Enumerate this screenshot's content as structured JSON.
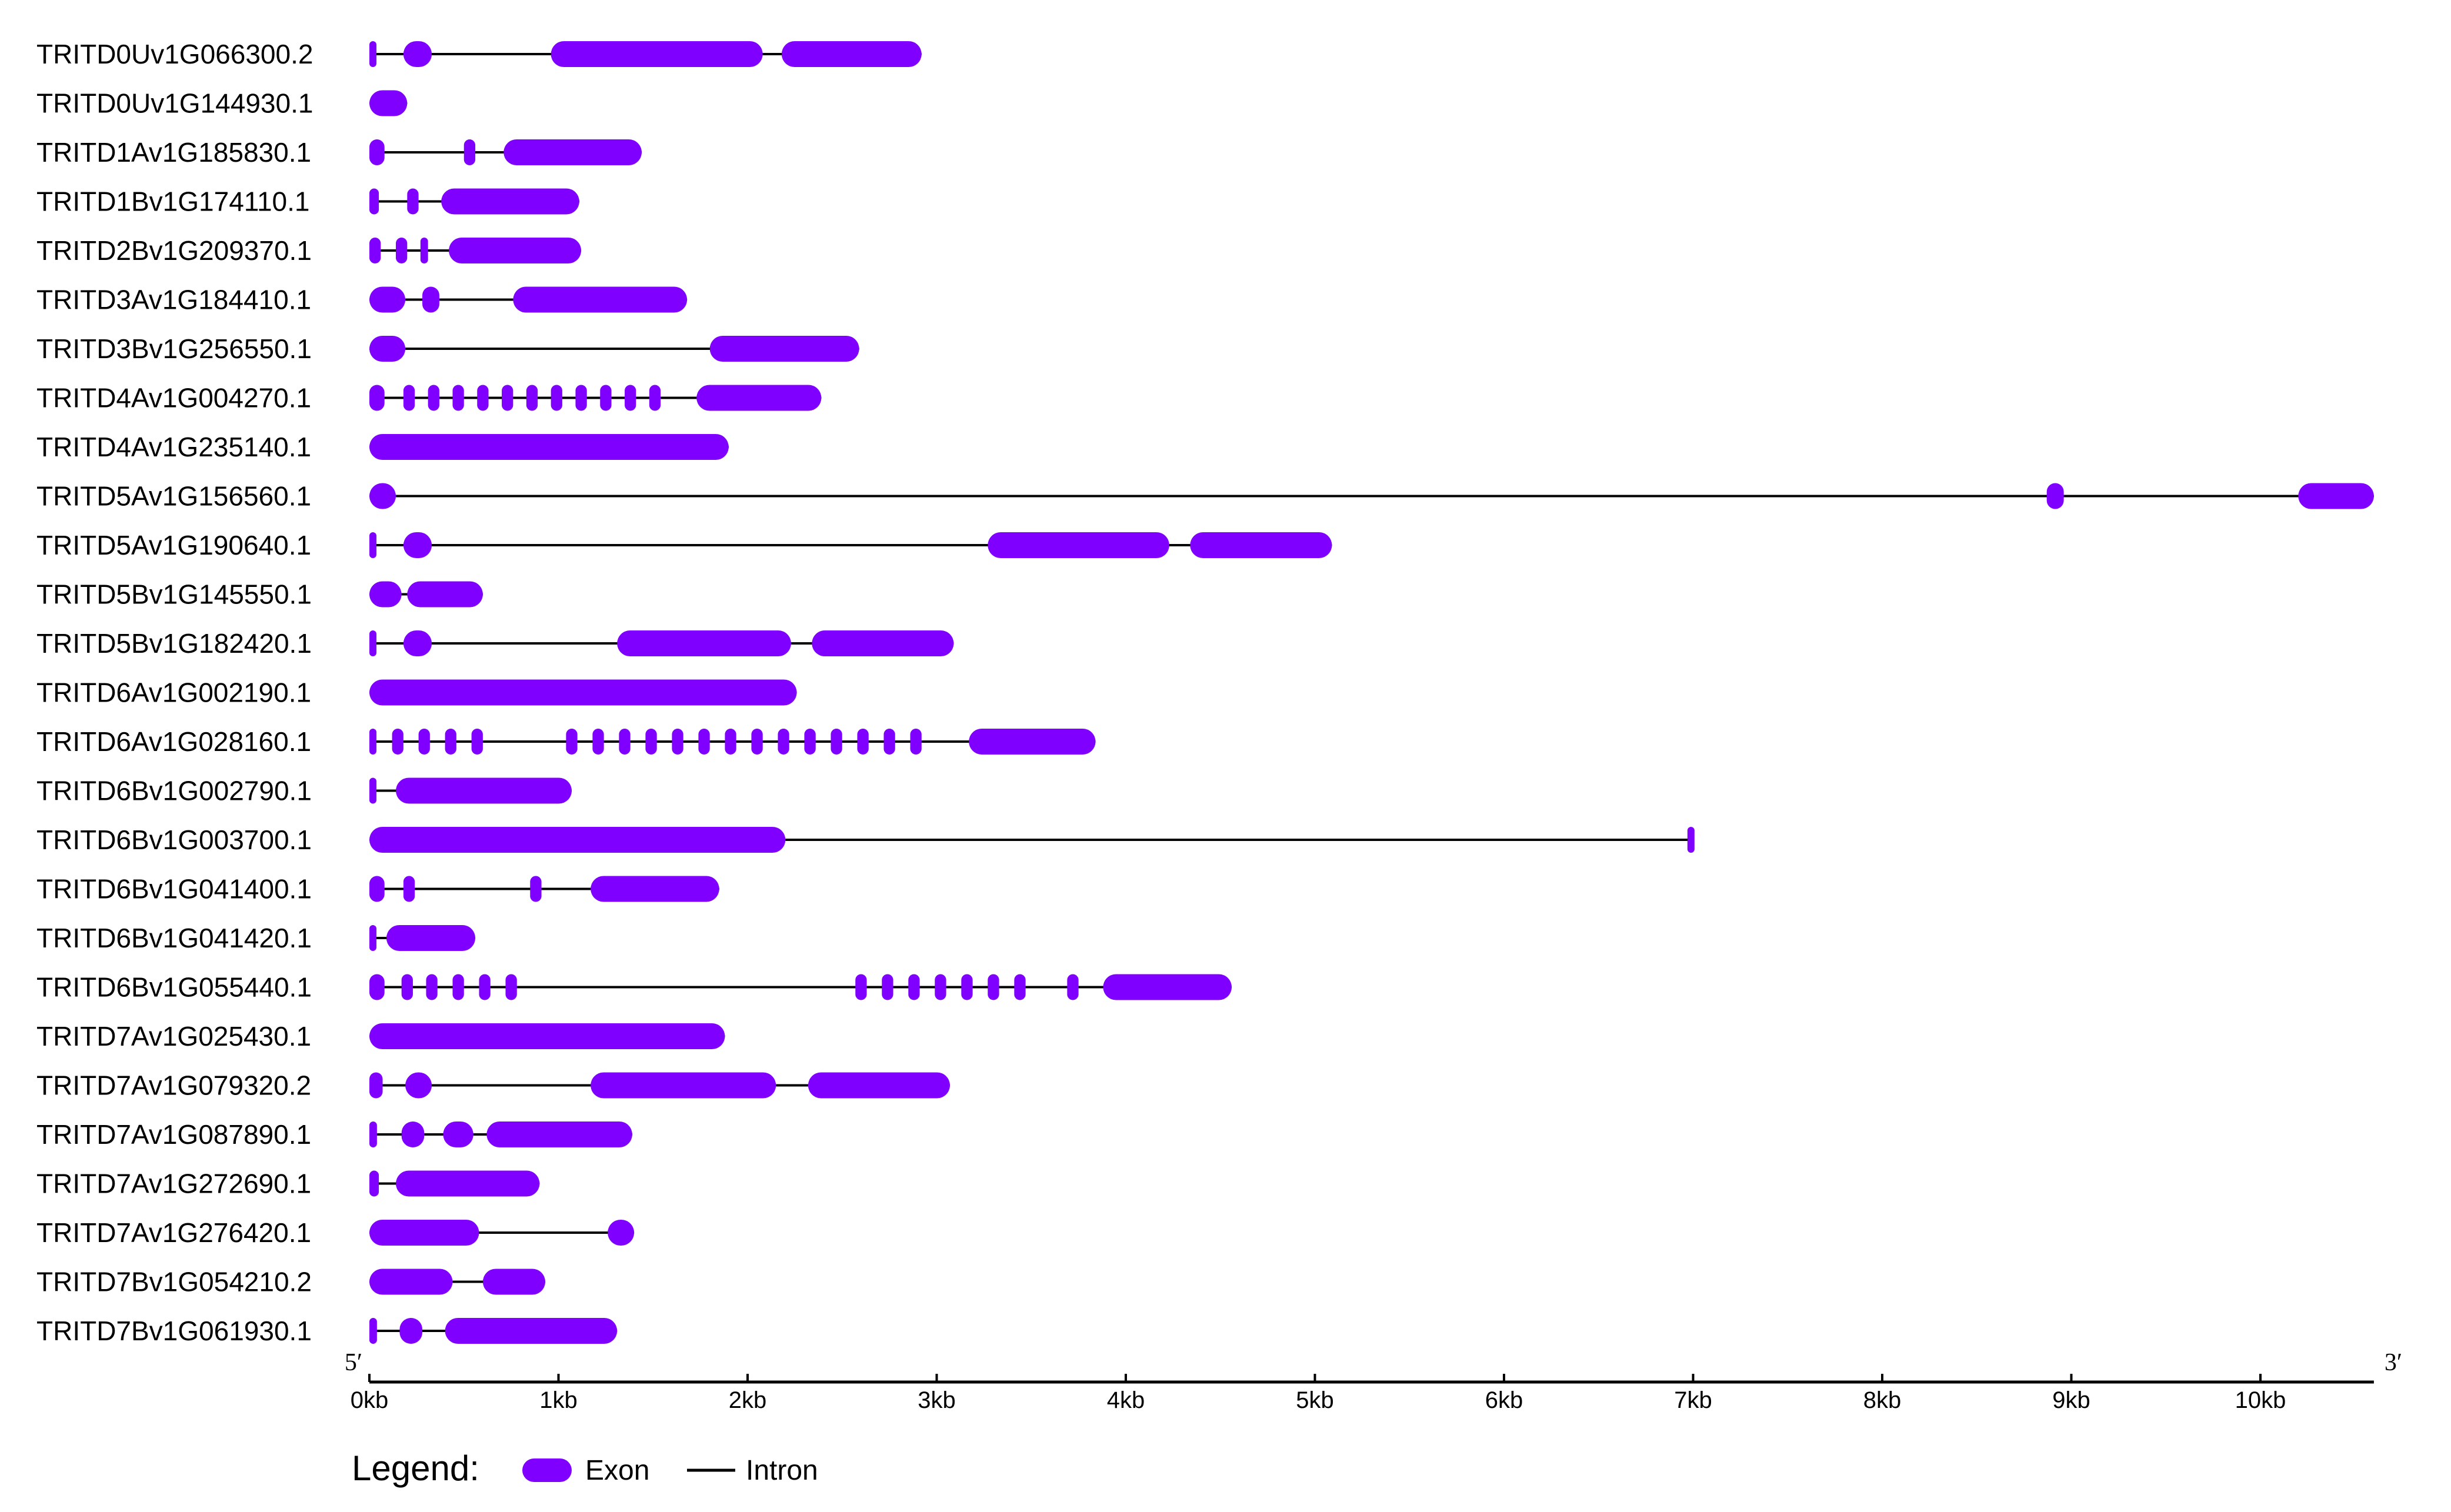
{
  "colors": {
    "exon": "#8000ff",
    "intron": "#000000",
    "axis": "#000000"
  },
  "axis": {
    "five_prime": "5′",
    "three_prime": "3′",
    "ticks": [
      "0kb",
      "1kb",
      "2kb",
      "3kb",
      "4kb",
      "5kb",
      "6kb",
      "7kb",
      "8kb",
      "9kb",
      "10kb"
    ]
  },
  "legend": {
    "title": "Legend:",
    "exon_label": "Exon",
    "intron_label": "Intron"
  },
  "chart_data": {
    "type": "gene-structure",
    "x_unit": "kb",
    "xlim": [
      0,
      10.6
    ],
    "genes": [
      {
        "name": "TRITD0Uv1G066300.2",
        "length": 2.92,
        "exons": [
          [
            0.0,
            0.03
          ],
          [
            0.18,
            0.33
          ],
          [
            0.96,
            2.08
          ],
          [
            2.18,
            2.92
          ]
        ]
      },
      {
        "name": "TRITD0Uv1G144930.1",
        "length": 0.2,
        "exons": [
          [
            0.0,
            0.2
          ]
        ]
      },
      {
        "name": "TRITD1Av1G185830.1",
        "length": 1.44,
        "exons": [
          [
            0.0,
            0.08
          ],
          [
            0.5,
            0.56
          ],
          [
            0.71,
            1.44
          ]
        ]
      },
      {
        "name": "TRITD1Bv1G174110.1",
        "length": 1.11,
        "exons": [
          [
            0.0,
            0.05
          ],
          [
            0.2,
            0.26
          ],
          [
            0.38,
            1.11
          ]
        ]
      },
      {
        "name": "TRITD2Bv1G209370.1",
        "length": 1.12,
        "exons": [
          [
            0.0,
            0.06
          ],
          [
            0.14,
            0.2
          ],
          [
            0.27,
            0.31
          ],
          [
            0.42,
            1.12
          ]
        ]
      },
      {
        "name": "TRITD3Av1G184410.1",
        "length": 1.68,
        "exons": [
          [
            0.0,
            0.19
          ],
          [
            0.28,
            0.37
          ],
          [
            0.76,
            1.68
          ]
        ]
      },
      {
        "name": "TRITD3Bv1G256550.1",
        "length": 2.59,
        "exons": [
          [
            0.0,
            0.19
          ],
          [
            1.8,
            2.59
          ]
        ]
      },
      {
        "name": "TRITD4Av1G004270.1",
        "length": 2.39,
        "exons": [
          [
            0.0,
            0.08
          ],
          [
            0.18,
            0.24
          ],
          [
            0.31,
            0.37
          ],
          [
            0.44,
            0.5
          ],
          [
            0.57,
            0.63
          ],
          [
            0.7,
            0.76
          ],
          [
            0.83,
            0.89
          ],
          [
            0.96,
            1.02
          ],
          [
            1.09,
            1.15
          ],
          [
            1.22,
            1.28
          ],
          [
            1.35,
            1.41
          ],
          [
            1.48,
            1.54
          ],
          [
            1.73,
            2.39
          ]
        ]
      },
      {
        "name": "TRITD4Av1G235140.1",
        "length": 1.9,
        "exons": [
          [
            0.0,
            1.9
          ]
        ]
      },
      {
        "name": "TRITD5Av1G156560.1",
        "length": 10.6,
        "exons": [
          [
            0.0,
            0.14
          ],
          [
            8.87,
            8.96
          ],
          [
            10.2,
            10.6
          ]
        ]
      },
      {
        "name": "TRITD5Av1G190640.1",
        "length": 5.09,
        "exons": [
          [
            0.0,
            0.03
          ],
          [
            0.18,
            0.33
          ],
          [
            3.27,
            4.23
          ],
          [
            4.34,
            5.09
          ]
        ]
      },
      {
        "name": "TRITD5Bv1G145550.1",
        "length": 0.6,
        "exons": [
          [
            0.0,
            0.17
          ],
          [
            0.2,
            0.6
          ]
        ]
      },
      {
        "name": "TRITD5Bv1G182420.1",
        "length": 3.09,
        "exons": [
          [
            0.0,
            0.03
          ],
          [
            0.18,
            0.33
          ],
          [
            1.31,
            2.23
          ],
          [
            2.34,
            3.09
          ]
        ]
      },
      {
        "name": "TRITD6Av1G002190.1",
        "length": 2.26,
        "exons": [
          [
            0.0,
            2.26
          ]
        ]
      },
      {
        "name": "TRITD6Av1G028160.1",
        "length": 3.84,
        "exons": [
          [
            0.0,
            0.03
          ],
          [
            0.12,
            0.18
          ],
          [
            0.26,
            0.32
          ],
          [
            0.4,
            0.46
          ],
          [
            0.54,
            0.6
          ],
          [
            1.04,
            1.1
          ],
          [
            1.18,
            1.24
          ],
          [
            1.32,
            1.38
          ],
          [
            1.46,
            1.52
          ],
          [
            1.6,
            1.66
          ],
          [
            1.74,
            1.8
          ],
          [
            1.88,
            1.94
          ],
          [
            2.02,
            2.08
          ],
          [
            2.16,
            2.22
          ],
          [
            2.3,
            2.36
          ],
          [
            2.44,
            2.5
          ],
          [
            2.58,
            2.64
          ],
          [
            2.72,
            2.78
          ],
          [
            2.86,
            2.92
          ],
          [
            3.17,
            3.84
          ]
        ]
      },
      {
        "name": "TRITD6Bv1G002790.1",
        "length": 1.07,
        "exons": [
          [
            0.0,
            0.03
          ],
          [
            0.14,
            1.07
          ]
        ]
      },
      {
        "name": "TRITD6Bv1G003700.1",
        "length": 7.0,
        "exons": [
          [
            0.0,
            2.2
          ],
          [
            6.97,
            7.0
          ]
        ]
      },
      {
        "name": "TRITD6Bv1G041400.1",
        "length": 1.85,
        "exons": [
          [
            0.0,
            0.08
          ],
          [
            0.18,
            0.24
          ],
          [
            0.85,
            0.91
          ],
          [
            1.17,
            1.85
          ]
        ]
      },
      {
        "name": "TRITD6Bv1G041420.1",
        "length": 0.56,
        "exons": [
          [
            0.0,
            0.01
          ],
          [
            0.09,
            0.56
          ]
        ]
      },
      {
        "name": "TRITD6Bv1G055440.1",
        "length": 4.56,
        "exons": [
          [
            0.0,
            0.08
          ],
          [
            0.17,
            0.23
          ],
          [
            0.3,
            0.36
          ],
          [
            0.44,
            0.5
          ],
          [
            0.58,
            0.64
          ],
          [
            0.72,
            0.78
          ],
          [
            2.57,
            2.63
          ],
          [
            2.71,
            2.77
          ],
          [
            2.85,
            2.91
          ],
          [
            2.99,
            3.05
          ],
          [
            3.13,
            3.19
          ],
          [
            3.27,
            3.33
          ],
          [
            3.41,
            3.47
          ],
          [
            3.69,
            3.75
          ],
          [
            3.88,
            4.56
          ]
        ]
      },
      {
        "name": "TRITD7Av1G025430.1",
        "length": 1.88,
        "exons": [
          [
            0.0,
            1.88
          ]
        ]
      },
      {
        "name": "TRITD7Av1G079320.2",
        "length": 3.07,
        "exons": [
          [
            0.0,
            0.07
          ],
          [
            0.19,
            0.33
          ],
          [
            1.17,
            2.15
          ],
          [
            2.32,
            3.07
          ]
        ]
      },
      {
        "name": "TRITD7Av1G087890.1",
        "length": 1.39,
        "exons": [
          [
            0.0,
            0.04
          ],
          [
            0.17,
            0.29
          ],
          [
            0.39,
            0.55
          ],
          [
            0.62,
            1.39
          ]
        ]
      },
      {
        "name": "TRITD7Av1G272690.1",
        "length": 0.9,
        "exons": [
          [
            0.0,
            0.05
          ],
          [
            0.14,
            0.9
          ]
        ]
      },
      {
        "name": "TRITD7Av1G276420.1",
        "length": 1.4,
        "exons": [
          [
            0.0,
            0.58
          ],
          [
            1.26,
            1.4
          ]
        ]
      },
      {
        "name": "TRITD7Bv1G054210.2",
        "length": 0.93,
        "exons": [
          [
            0.0,
            0.44
          ],
          [
            0.6,
            0.93
          ]
        ]
      },
      {
        "name": "TRITD7Bv1G061930.1",
        "length": 1.31,
        "exons": [
          [
            0.0,
            0.04
          ],
          [
            0.16,
            0.28
          ],
          [
            0.4,
            1.31
          ]
        ]
      }
    ]
  }
}
